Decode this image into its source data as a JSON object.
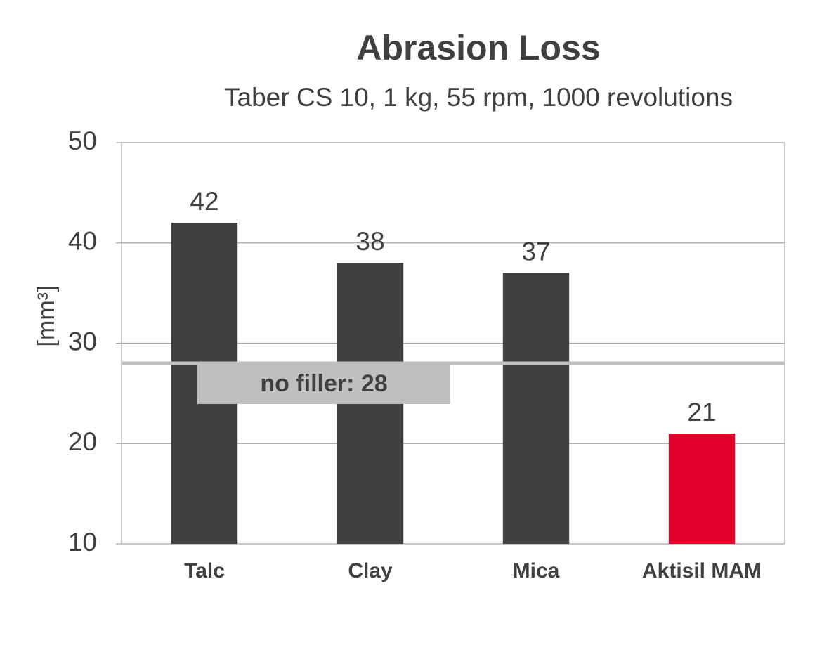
{
  "chart_data": {
    "type": "bar",
    "title": "Abrasion Loss",
    "subtitle": "Taber CS 10, 1 kg, 55 rpm, 1000 revolutions",
    "y_label": "[mm³]",
    "categories": [
      "Talc",
      "Clay",
      "Mica",
      "Aktisil MAM"
    ],
    "values": [
      42,
      38,
      37,
      21
    ],
    "colors": [
      "#404040",
      "#404040",
      "#404040",
      "#e0002a"
    ],
    "ylim": [
      10,
      50
    ],
    "yticks": [
      10,
      20,
      30,
      40,
      50
    ],
    "grid": true,
    "reference_line": {
      "value": 28,
      "label": "no filler: 28",
      "color": "#bfbfbf"
    }
  }
}
